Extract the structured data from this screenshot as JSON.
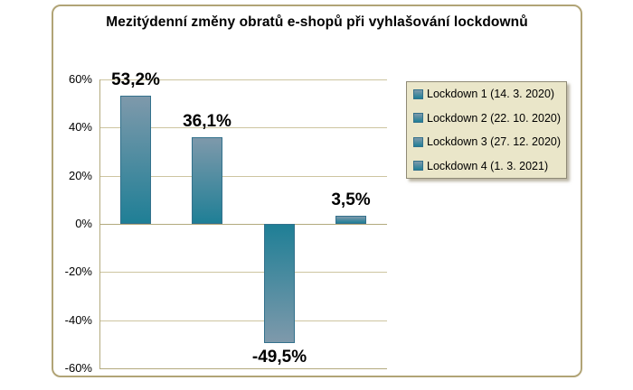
{
  "chart_data": {
    "type": "bar",
    "title": "Mezitýdenní změny obratů e-shopů při vyhlašování lockdownů",
    "xlabel": "",
    "ylabel": "",
    "ylim": [
      -60,
      60
    ],
    "ytick_step": 20,
    "ytick_labels": [
      "60%",
      "40%",
      "20%",
      "0%",
      "-20%",
      "-40%",
      "-60%"
    ],
    "grid": true,
    "legend_position": "right",
    "series": [
      {
        "name": "Lockdown 1 (14. 3. 2020)",
        "value": 53.2,
        "value_label": "53,2%"
      },
      {
        "name": "Lockdown 2 (22. 10. 2020)",
        "value": 36.1,
        "value_label": "36,1%"
      },
      {
        "name": "Lockdown 3 (27. 12. 2020)",
        "value": -49.5,
        "value_label": "-49,5%"
      },
      {
        "name": "Lockdown 4 (1. 3. 2021)",
        "value": 3.5,
        "value_label": "3,5%"
      }
    ]
  },
  "colors": {
    "bar_gradient_light": "#7e99ab",
    "bar_gradient_dark": "#1f7f96",
    "bar_border": "#33718c",
    "gridline": "#cdc5a0",
    "axis_line": "#b3aa7e",
    "frame_border": "#b1a476",
    "legend_background": "#eae6c9",
    "legend_border": "#8f8a76",
    "text": "#000000"
  }
}
